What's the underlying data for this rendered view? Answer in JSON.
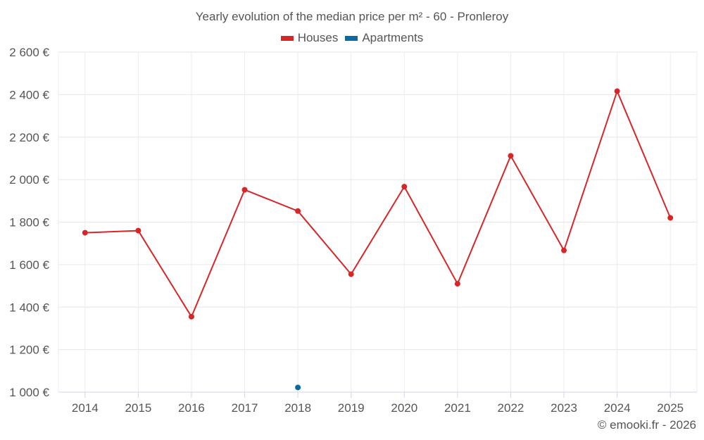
{
  "chart_data": {
    "type": "line",
    "title": "Yearly evolution of the median price per m² - 60 - Pronleroy",
    "categories": [
      "2014",
      "2015",
      "2016",
      "2017",
      "2018",
      "2019",
      "2020",
      "2021",
      "2022",
      "2023",
      "2024",
      "2025"
    ],
    "series": [
      {
        "name": "Houses",
        "color": "#d62728",
        "values": [
          1750,
          1760,
          1355,
          1952,
          1852,
          1555,
          1967,
          1510,
          2112,
          1667,
          2416,
          1820
        ]
      },
      {
        "name": "Apartments",
        "color": "#0b6a9e",
        "values": [
          null,
          null,
          null,
          null,
          1022,
          null,
          null,
          null,
          null,
          null,
          null,
          null
        ]
      }
    ],
    "ylim": [
      1000,
      2600
    ],
    "yticks": [
      1000,
      1200,
      1400,
      1600,
      1800,
      2000,
      2200,
      2400,
      2600
    ],
    "ytick_labels": [
      "1 000 €",
      "1 200 €",
      "1 400 €",
      "1 600 €",
      "1 800 €",
      "2 000 €",
      "2 200 €",
      "2 400 €",
      "2 600 €"
    ],
    "xlabel": "",
    "ylabel": "",
    "grid": true,
    "legend": "top-center"
  },
  "credit": "© emooki.fr - 2026"
}
